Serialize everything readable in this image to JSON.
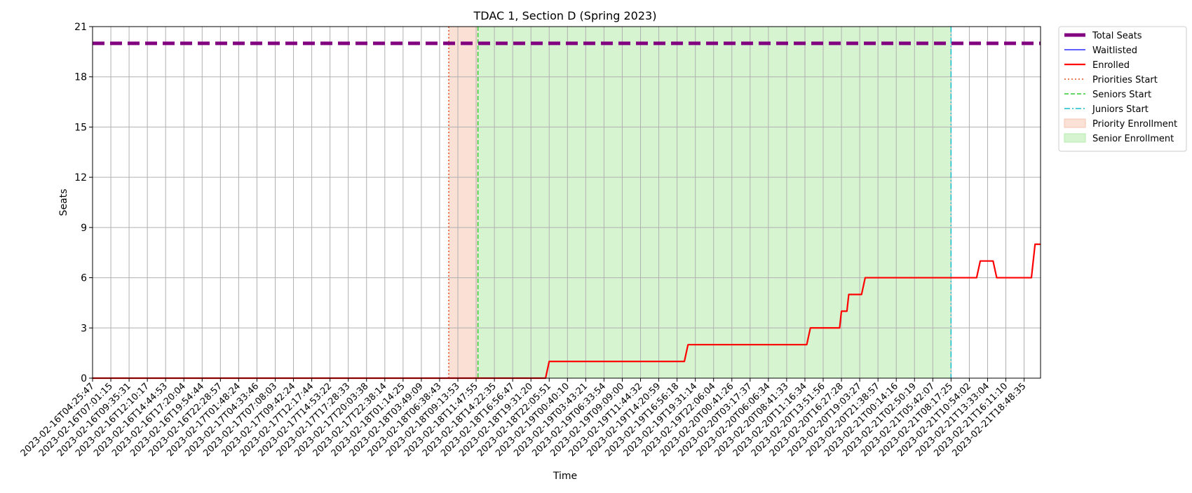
{
  "chart_data": {
    "type": "line",
    "title": "TDAC 1, Section D (Spring 2023)",
    "xlabel": "Time",
    "ylabel": "Seats",
    "ylim": [
      0,
      21
    ],
    "yticks": [
      0,
      3,
      6,
      9,
      12,
      15,
      18,
      21
    ],
    "grid": true,
    "legend_position": "outside-top-right",
    "x_tick_labels": [
      "2023-02-16T04:25:47",
      "2023-02-16T07:01:15",
      "2023-02-16T09:35:31",
      "2023-02-16T12:10:17",
      "2023-02-16T14:44:53",
      "2023-02-16T17:20:04",
      "2023-02-16T19:54:44",
      "2023-02-16T22:28:57",
      "2023-02-17T01:48:24",
      "2023-02-17T04:33:46",
      "2023-02-17T07:08:03",
      "2023-02-17T09:42:24",
      "2023-02-17T12:17:44",
      "2023-02-17T14:53:22",
      "2023-02-17T17:28:33",
      "2023-02-17T20:03:38",
      "2023-02-17T22:38:14",
      "2023-02-18T01:14:25",
      "2023-02-18T03:49:09",
      "2023-02-18T06:38:43",
      "2023-02-18T09:13:53",
      "2023-02-18T11:47:55",
      "2023-02-18T14:22:35",
      "2023-02-18T16:56:47",
      "2023-02-18T19:31:20",
      "2023-02-18T22:05:51",
      "2023-02-19T00:40:10",
      "2023-02-19T03:43:21",
      "2023-02-19T06:33:54",
      "2023-02-19T09:09:00",
      "2023-02-19T11:44:32",
      "2023-02-19T14:20:59",
      "2023-02-19T16:56:18",
      "2023-02-19T19:31:14",
      "2023-02-19T22:06:04",
      "2023-02-20T00:41:26",
      "2023-02-20T03:17:37",
      "2023-02-20T06:06:34",
      "2023-02-20T08:41:33",
      "2023-02-20T11:16:34",
      "2023-02-20T13:51:56",
      "2023-02-20T16:27:28",
      "2023-02-20T19:03:27",
      "2023-02-20T21:38:57",
      "2023-02-21T00:14:16",
      "2023-02-21T02:50:19",
      "2023-02-21T05:42:07",
      "2023-02-21T08:17:25",
      "2023-02-21T10:54:02",
      "2023-02-21T13:33:04",
      "2023-02-21T16:11:10",
      "2023-02-21T18:48:35"
    ],
    "x_range_ticks": [
      0,
      51.9
    ],
    "series": [
      {
        "name": "Total Seats",
        "color": "#800080",
        "style": "dashed-thick",
        "x": [
          0,
          51.9
        ],
        "values": [
          20,
          20
        ]
      },
      {
        "name": "Waitlisted",
        "color": "#0000ff",
        "style": "solid-thin",
        "x": [],
        "values": []
      },
      {
        "name": "Enrolled",
        "color": "#ff0000",
        "style": "solid-step",
        "x": [
          0,
          24.8,
          25.0,
          32.4,
          32.6,
          39.1,
          39.3,
          40.9,
          41.0,
          41.3,
          41.4,
          42.1,
          42.3,
          48.4,
          48.6,
          49.3,
          49.5,
          51.4,
          51.6,
          51.9
        ],
        "values": [
          0,
          0,
          1,
          1,
          2,
          2,
          3,
          3,
          4,
          4,
          5,
          5,
          6,
          6,
          7,
          7,
          6,
          6,
          8,
          8
        ]
      }
    ],
    "vlines": [
      {
        "name": "Priorities Start",
        "x": 19.5,
        "color": "#e8501e",
        "style": "dotted"
      },
      {
        "name": "Seniors Start",
        "x": 21.1,
        "color": "#33cc33",
        "style": "dashed"
      },
      {
        "name": "Juniors Start",
        "x": 47.0,
        "color": "#17becf",
        "style": "dashdot"
      }
    ],
    "spans": [
      {
        "name": "Priority Enrollment",
        "x": [
          19.5,
          21.1
        ],
        "color": "#f5c6b3"
      },
      {
        "name": "Senior Enrollment",
        "x": [
          21.1,
          47.0
        ],
        "color": "#b6ebab"
      }
    ]
  }
}
